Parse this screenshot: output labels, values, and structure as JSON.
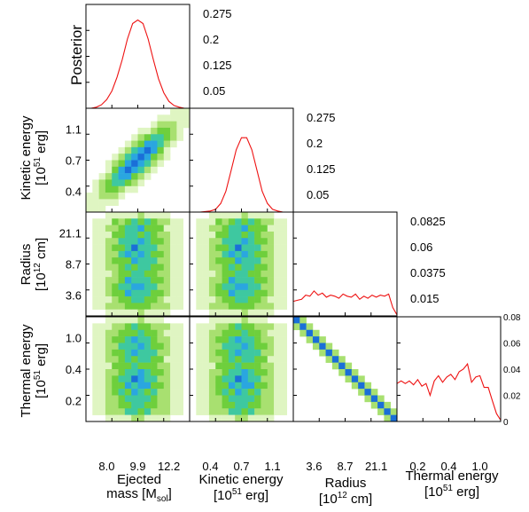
{
  "chart_data": {
    "type": "heatmap",
    "description_free": true,
    "parameters": [
      {
        "key": "mass",
        "label": "Ejected",
        "label2_pre": "mass [M",
        "label2_sub": "sol",
        "label2_post": "]",
        "ticks": [
          "8.0",
          "9.9",
          "12.2"
        ]
      },
      {
        "key": "ke",
        "label": "Kinetic energy",
        "label2_pre": "[10",
        "label2_sup": "51",
        "label2_post": " erg]",
        "ticks": [
          "0.4",
          "0.7",
          "1.1"
        ]
      },
      {
        "key": "radius",
        "label": "Radius",
        "label2_pre": "[10",
        "label2_sup": "12",
        "label2_post": " cm]",
        "ticks": [
          "3.6",
          "8.7",
          "21.1"
        ]
      },
      {
        "key": "te",
        "label": "Thermal energy",
        "label2_pre": "[10",
        "label2_sup": "51",
        "label2_post": " erg]",
        "ticks": [
          "0.2",
          "0.4",
          "1.0"
        ]
      }
    ],
    "y_tick_labels": {
      "ke": [
        "1.1",
        "0.7",
        "0.4"
      ],
      "radius": [
        "21.1",
        "8.7",
        "3.6"
      ],
      "te": [
        "1.0",
        "0.4",
        "0.2"
      ]
    },
    "posterior_ylabel": "Posterior",
    "diag_right_ticks": [
      [
        "0.275",
        "0.2",
        "0.125",
        "0.05"
      ],
      [
        "0.275",
        "0.2",
        "0.125",
        "0.05"
      ],
      [
        "0.0825",
        "0.06",
        "0.0375",
        "0.015"
      ],
      [
        "0.08",
        "0.06",
        "0.04",
        "0.02",
        "0"
      ]
    ],
    "marginals": {
      "mass": {
        "x": [
          0,
          0.05,
          0.1,
          0.15,
          0.2,
          0.25,
          0.3,
          0.35,
          0.4,
          0.45,
          0.5,
          0.55,
          0.6,
          0.65,
          0.7,
          0.75,
          0.8,
          0.85,
          0.9,
          0.95,
          1.0
        ],
        "y": [
          0,
          0,
          0.003,
          0.01,
          0.025,
          0.05,
          0.09,
          0.14,
          0.2,
          0.245,
          0.255,
          0.245,
          0.2,
          0.14,
          0.085,
          0.045,
          0.02,
          0.008,
          0.003,
          0,
          0
        ]
      },
      "ke": {
        "x": [
          0,
          0.1,
          0.2,
          0.25,
          0.3,
          0.35,
          0.4,
          0.45,
          0.5,
          0.55,
          0.6,
          0.65,
          0.7,
          0.75,
          0.8,
          0.85,
          0.9,
          1.0
        ],
        "y": [
          0,
          0,
          0.003,
          0.008,
          0.025,
          0.06,
          0.12,
          0.18,
          0.215,
          0.215,
          0.18,
          0.12,
          0.06,
          0.025,
          0.008,
          0.003,
          0,
          0
        ]
      },
      "radius": {
        "x": [
          0,
          0.04,
          0.08,
          0.12,
          0.16,
          0.2,
          0.24,
          0.28,
          0.32,
          0.36,
          0.4,
          0.44,
          0.48,
          0.52,
          0.56,
          0.6,
          0.64,
          0.68,
          0.72,
          0.76,
          0.8,
          0.84,
          0.88,
          0.92,
          0.96,
          1.0
        ],
        "y": [
          0.014,
          0.015,
          0.016,
          0.02,
          0.019,
          0.024,
          0.02,
          0.022,
          0.018,
          0.02,
          0.019,
          0.017,
          0.021,
          0.019,
          0.018,
          0.021,
          0.016,
          0.019,
          0.017,
          0.02,
          0.018,
          0.02,
          0.019,
          0.021,
          0.008,
          0.001
        ]
      },
      "te": {
        "x": [
          0,
          0.04,
          0.08,
          0.12,
          0.16,
          0.2,
          0.24,
          0.28,
          0.32,
          0.36,
          0.4,
          0.44,
          0.48,
          0.52,
          0.56,
          0.6,
          0.64,
          0.68,
          0.72,
          0.76,
          0.8,
          0.84,
          0.88,
          0.92,
          0.96,
          1.0
        ],
        "y": [
          0.029,
          0.031,
          0.029,
          0.031,
          0.028,
          0.032,
          0.027,
          0.029,
          0.02,
          0.031,
          0.035,
          0.03,
          0.034,
          0.036,
          0.032,
          0.038,
          0.04,
          0.044,
          0.03,
          0.034,
          0.035,
          0.026,
          0.026,
          0.016,
          0.006,
          0.001
        ]
      }
    },
    "colormap": [
      "#ffffff",
      "#dff5c2",
      "#a8e070",
      "#6ecf3c",
      "#3ec8a0",
      "#2aa6e0",
      "#1a6fd8"
    ]
  }
}
